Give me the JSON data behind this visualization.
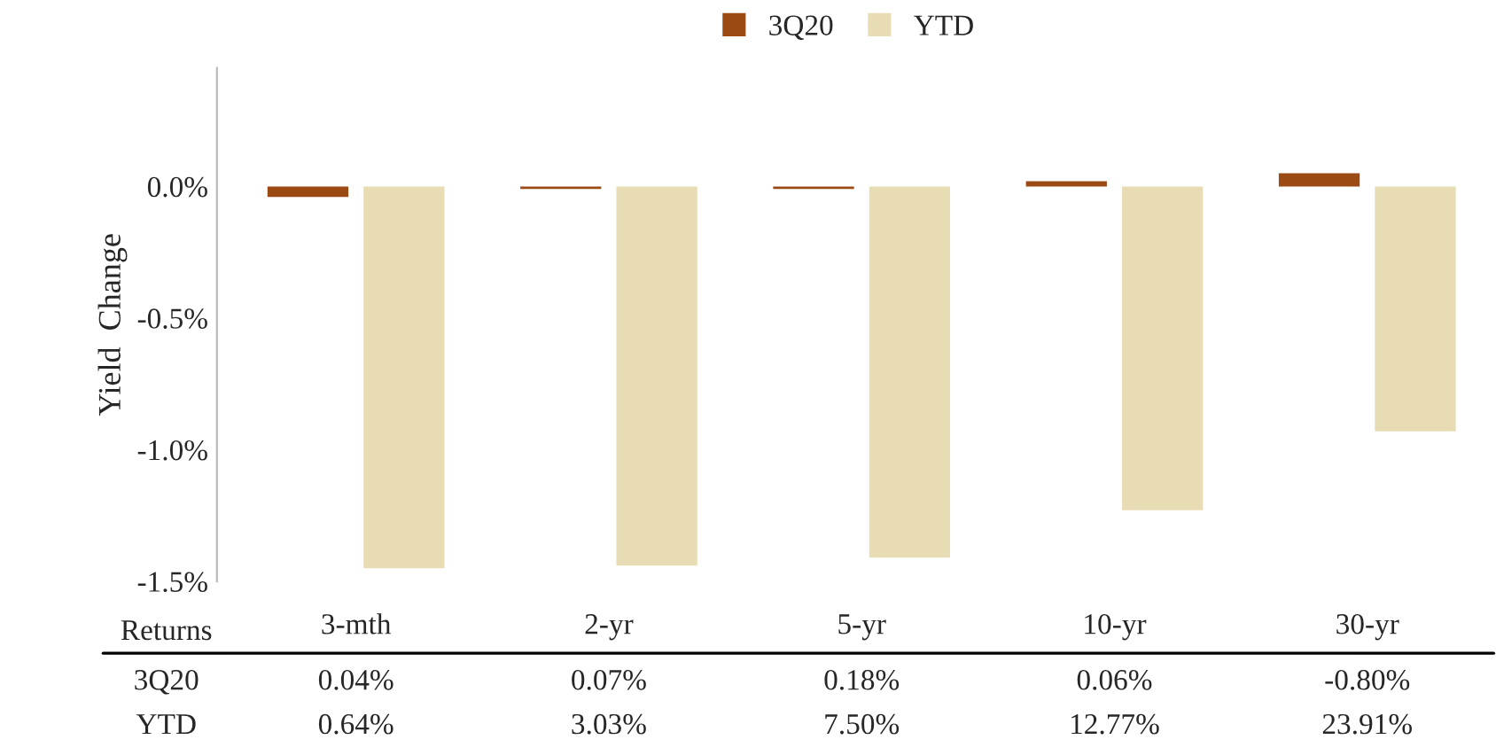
{
  "chart_data": {
    "type": "bar",
    "ylabel": "Yield  Change",
    "categories": [
      "3-mth",
      "2-yr",
      "5-yr",
      "10-yr",
      "30-yr"
    ],
    "series": [
      {
        "name": "3Q20",
        "color": "#9c4a14",
        "values": [
          -0.04,
          -0.01,
          -0.01,
          0.02,
          0.05
        ]
      },
      {
        "name": "YTD",
        "color": "#e8dcb5",
        "values": [
          -1.45,
          -1.44,
          -1.41,
          -1.23,
          -0.93
        ]
      }
    ],
    "ylim": [
      -1.5,
      0.45
    ],
    "yticks": [
      {
        "value": 0,
        "label": "0.0%"
      },
      {
        "value": -0.5,
        "label": "-0.5%"
      },
      {
        "value": -1.0,
        "label": "-1.0%"
      },
      {
        "value": -1.5,
        "label": "-1.5%"
      }
    ],
    "grid": false,
    "legend": "top",
    "annotations": [
      "Returns",
      "3Q20",
      "0.04%",
      "0.07%",
      "0.18%",
      "0.06%",
      "-0.80%",
      "YTD",
      "0.64%",
      "3.03%",
      "7.50%",
      "12.77%",
      "23.91%"
    ]
  }
}
